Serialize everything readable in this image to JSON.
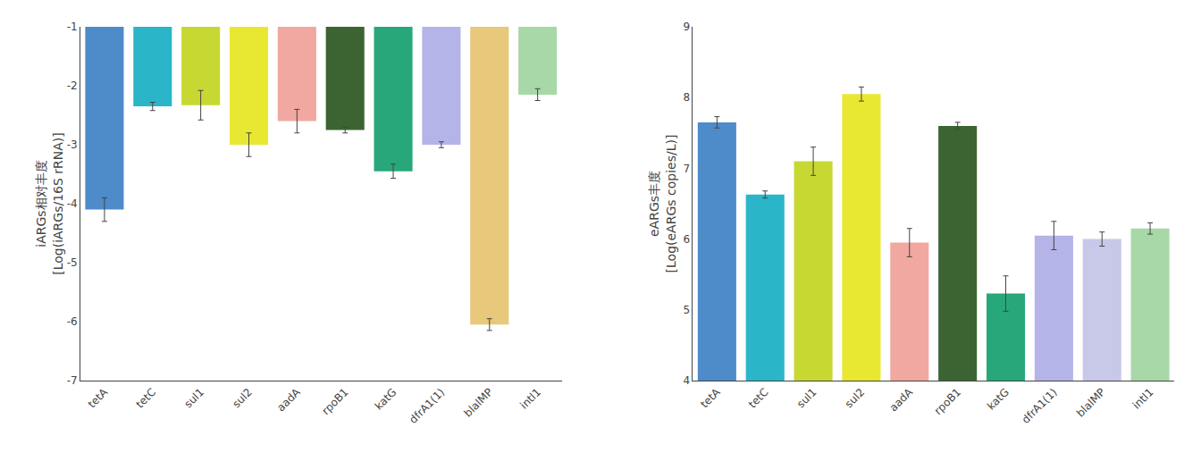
{
  "chart_data": [
    {
      "type": "bar",
      "categories": [
        "tetA",
        "tetC",
        "sul1",
        "sul2",
        "aadA",
        "rpoB1",
        "katG",
        "dfrA1(1)",
        "blalMP",
        "intl1"
      ],
      "values": [
        -4.1,
        -2.35,
        -2.33,
        -3.0,
        -2.6,
        -2.75,
        -3.45,
        -3.0,
        -6.05,
        -2.15
      ],
      "errors": [
        0.2,
        0.07,
        0.25,
        0.2,
        0.2,
        0.05,
        0.12,
        0.05,
        0.1,
        0.1
      ],
      "colors": [
        "#4D8BC9",
        "#2BB5C8",
        "#C8D832",
        "#E8E832",
        "#F0A8A0",
        "#3C6432",
        "#28A87A",
        "#B4B4E8",
        "#E8C87A",
        "#A8D8A8"
      ],
      "ylabel": "iARGs相对丰度\n[Log(iARGs/16S rRNA)]",
      "ylim": [
        -7,
        -1
      ],
      "yticks": [
        -7,
        -6,
        -5,
        -4,
        -3,
        -2,
        -1
      ],
      "grid": false
    },
    {
      "type": "bar",
      "categories": [
        "tetA",
        "tetC",
        "sul1",
        "sul2",
        "aadA",
        "rpoB1",
        "katG",
        "dfrA1(1)",
        "blalMP",
        "intl1"
      ],
      "values": [
        7.65,
        6.63,
        7.1,
        8.05,
        5.95,
        7.6,
        5.23,
        6.05,
        6.0,
        6.15
      ],
      "errors": [
        0.08,
        0.05,
        0.2,
        0.1,
        0.2,
        0.05,
        0.25,
        0.2,
        0.1,
        0.08
      ],
      "colors": [
        "#4D8BC9",
        "#2BB5C8",
        "#C8D832",
        "#E8E832",
        "#F0A8A0",
        "#3C6432",
        "#28A87A",
        "#B4B4E8",
        "#C8C8E8",
        "#A8D8A8"
      ],
      "ylabel": "eARGs丰度\n[Log(eARGs copies/L)]",
      "ylim": [
        4,
        9
      ],
      "yticks": [
        4,
        5,
        6,
        7,
        8,
        9
      ],
      "grid": false
    }
  ]
}
